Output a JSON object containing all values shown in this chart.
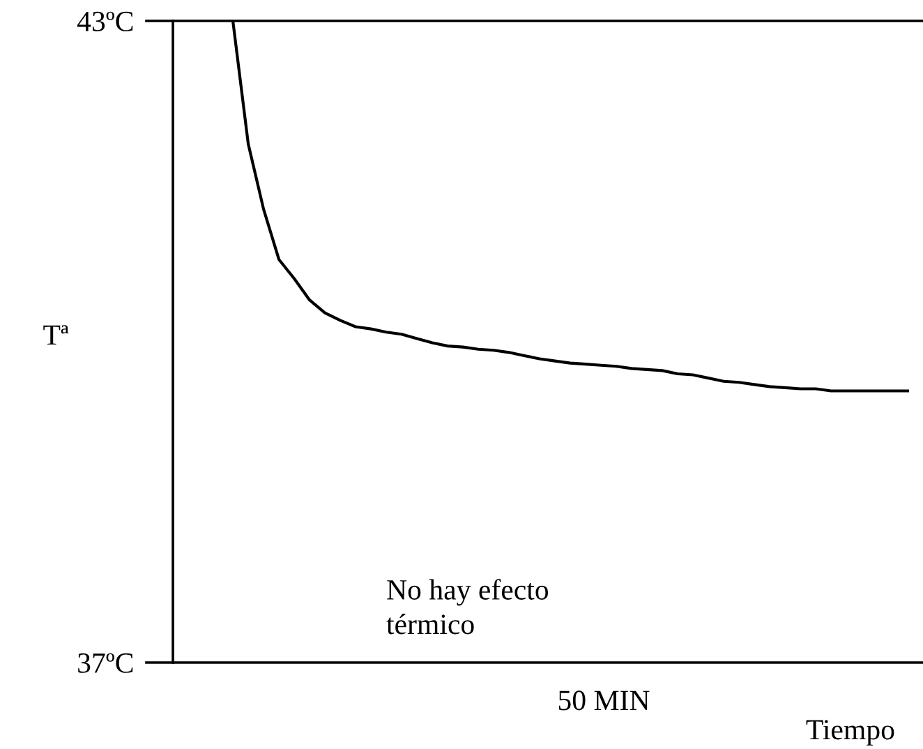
{
  "chart_data": {
    "type": "line",
    "ylabel": "Tª",
    "xlabel": "Tiempo",
    "tick_labels": "y",
    "annotations": [
      "No hay efecto\ntérmico",
      "50 MIN"
    ],
    "categories": [
      null,
      null,
      null,
      null,
      null,
      null,
      null,
      null,
      null,
      null,
      null,
      null,
      null,
      null,
      null,
      null,
      null,
      null,
      null,
      null,
      null,
      null,
      null,
      null,
      null,
      null,
      null,
      null,
      null,
      null,
      null,
      null,
      null,
      null,
      null,
      null,
      null,
      null,
      null,
      null,
      null,
      null,
      null,
      null,
      null,
      null,
      null,
      null
    ],
    "series": [
      {
        "color": "#000000",
        "values": [
          null,
          null,
          null,
          43.0,
          41.85,
          41.24,
          40.77,
          40.59,
          40.39,
          40.27,
          40.2,
          40.14,
          40.12,
          40.09,
          40.07,
          40.03,
          39.99,
          39.96,
          39.95,
          39.93,
          39.92,
          39.9,
          39.87,
          39.84,
          39.82,
          39.8,
          39.79,
          39.78,
          39.77,
          39.75,
          39.74,
          39.73,
          39.7,
          39.69,
          39.66,
          39.63,
          39.62,
          39.6,
          39.58,
          39.57,
          39.56,
          39.56,
          39.54,
          39.54,
          39.54,
          39.54,
          39.54,
          39.54
        ]
      }
    ],
    "ylim": [
      37,
      43
    ],
    "yticks": [
      {
        "value": 37,
        "label": "37ºC"
      },
      {
        "value": 43,
        "label": "43ºC"
      }
    ]
  }
}
